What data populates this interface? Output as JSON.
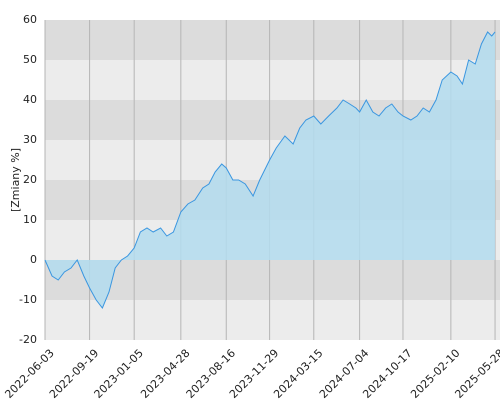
{
  "chart_data": {
    "type": "area",
    "y_label": "[Zmiany %]",
    "x": [
      "2022-06-03",
      "2022-06-20",
      "2022-07-05",
      "2022-07-20",
      "2022-08-05",
      "2022-08-20",
      "2022-09-05",
      "2022-09-19",
      "2022-10-05",
      "2022-10-20",
      "2022-11-05",
      "2022-11-20",
      "2022-12-05",
      "2022-12-20",
      "2023-01-05",
      "2023-01-20",
      "2023-02-05",
      "2023-02-20",
      "2023-03-10",
      "2023-03-25",
      "2023-04-10",
      "2023-04-28",
      "2023-05-15",
      "2023-06-01",
      "2023-06-20",
      "2023-07-05",
      "2023-07-20",
      "2023-08-05",
      "2023-08-16",
      "2023-09-01",
      "2023-09-15",
      "2023-10-01",
      "2023-10-20",
      "2023-11-05",
      "2023-11-29",
      "2023-12-15",
      "2024-01-05",
      "2024-01-25",
      "2024-02-10",
      "2024-02-25",
      "2024-03-15",
      "2024-04-01",
      "2024-04-20",
      "2024-05-10",
      "2024-05-25",
      "2024-06-10",
      "2024-06-25",
      "2024-07-04",
      "2024-07-20",
      "2024-08-05",
      "2024-08-20",
      "2024-09-05",
      "2024-09-20",
      "2024-10-05",
      "2024-10-17",
      "2024-11-05",
      "2024-11-20",
      "2024-12-05",
      "2024-12-20",
      "2025-01-05",
      "2025-01-20",
      "2025-02-10",
      "2025-02-25",
      "2025-03-10",
      "2025-03-25",
      "2025-04-10",
      "2025-04-25",
      "2025-05-10",
      "2025-05-20",
      "2025-05-28"
    ],
    "series": [
      {
        "color": "#3a96e0",
        "fill": "#b3dcef",
        "values": [
          0,
          -4,
          -5,
          -3,
          -2,
          0,
          -4,
          -7,
          -10,
          -12,
          -8,
          -2,
          0,
          1,
          3,
          7,
          8,
          7,
          8,
          6,
          7,
          12,
          14,
          15,
          18,
          19,
          22,
          24,
          23,
          20,
          20,
          19,
          16,
          20,
          25,
          28,
          31,
          29,
          33,
          35,
          36,
          34,
          36,
          38,
          40,
          39,
          38,
          37,
          40,
          37,
          36,
          38,
          39,
          37,
          36,
          35,
          36,
          38,
          37,
          40,
          45,
          47,
          46,
          44,
          50,
          49,
          54,
          57,
          56,
          57
        ]
      }
    ],
    "xlim": [
      "2022-06-03",
      "2025-06-09"
    ],
    "xticks": [
      "2022-06-03",
      "2022-09-19",
      "2023-01-05",
      "2023-04-28",
      "2023-08-16",
      "2023-11-29",
      "2024-03-15",
      "2024-07-04",
      "2024-10-17",
      "2025-02-10",
      "2025-05-28"
    ],
    "ylim": [
      -20,
      60
    ],
    "yticks": [
      -20,
      -10,
      0,
      10,
      20,
      30,
      40,
      50,
      60
    ],
    "band_colors": [
      "#ececec",
      "#dcdcdc"
    ],
    "grid_color": "#b5b5b5"
  }
}
